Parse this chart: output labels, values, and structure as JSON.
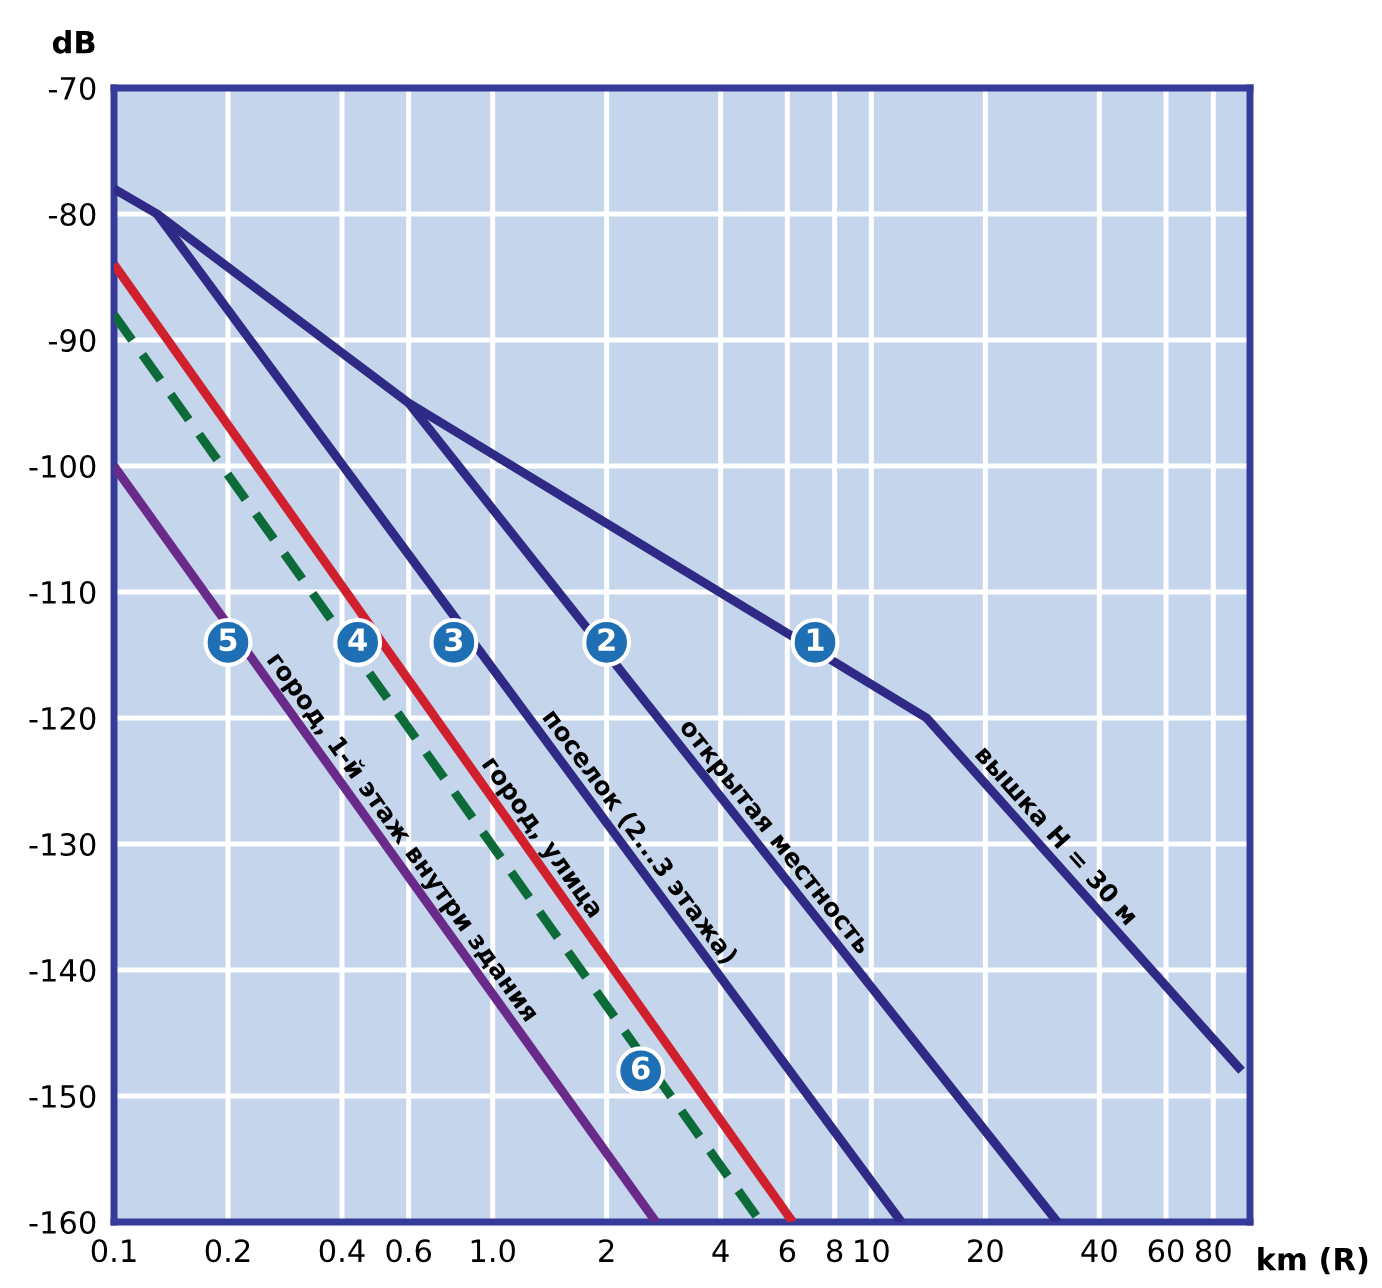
{
  "chart_data": {
    "type": "line",
    "xlabel": "km (R)",
    "ylabel": "dB",
    "log": "x",
    "xlim": [
      0.1,
      100
    ],
    "ylim": [
      -160,
      -70
    ],
    "xticks": [
      0.1,
      0.2,
      0.4,
      0.6,
      {
        "value": 1,
        "label": "1.0"
      },
      2,
      4,
      6,
      8,
      10,
      20,
      40,
      60,
      80
    ],
    "yticks": [
      -160,
      -150,
      -140,
      -130,
      -120,
      -110,
      -100,
      -90,
      -80,
      -70
    ],
    "grid": true,
    "legend": false,
    "marker": "none",
    "series": [
      {
        "name": "вышка H = 30 м",
        "color": "#2e2a86",
        "x": [
          0.1,
          0.13,
          0.6,
          14,
          95
        ],
        "values": [
          -78,
          -80,
          -95,
          -120,
          -148
        ]
      },
      {
        "name": "открытая местность",
        "color": "#2e2a86",
        "x": [
          0.6,
          31
        ],
        "values": [
          -95,
          -160
        ]
      },
      {
        "name": "поселок (2...3 этажа)",
        "color": "#2e2a86",
        "x": [
          0.13,
          12
        ],
        "values": [
          -80,
          -160
        ]
      },
      {
        "name": "город, улица",
        "color": "#d0202e",
        "x": [
          0.1,
          6.2
        ],
        "values": [
          -84,
          -160
        ]
      },
      {
        "name": "город, 1-й этаж внутри здания",
        "color": "#6a2a8a",
        "x": [
          0.1,
          2.7
        ],
        "values": [
          -100,
          -160
        ]
      },
      {
        "color": "#0d6b3a",
        "line_style": "dashed",
        "x": [
          0.1,
          5.1
        ],
        "values": [
          -88,
          -160
        ]
      }
    ],
    "annotations": [
      {
        "text": "1",
        "x": 7.1,
        "y": -114
      },
      {
        "text": "2",
        "x": 2.0,
        "y": -114
      },
      {
        "text": "3",
        "x": 0.79,
        "y": -114
      },
      {
        "text": "4",
        "x": 0.44,
        "y": -114
      },
      {
        "text": "5",
        "x": 0.2,
        "y": -114
      },
      {
        "text": "6",
        "x": 2.46,
        "y": -148
      }
    ]
  }
}
